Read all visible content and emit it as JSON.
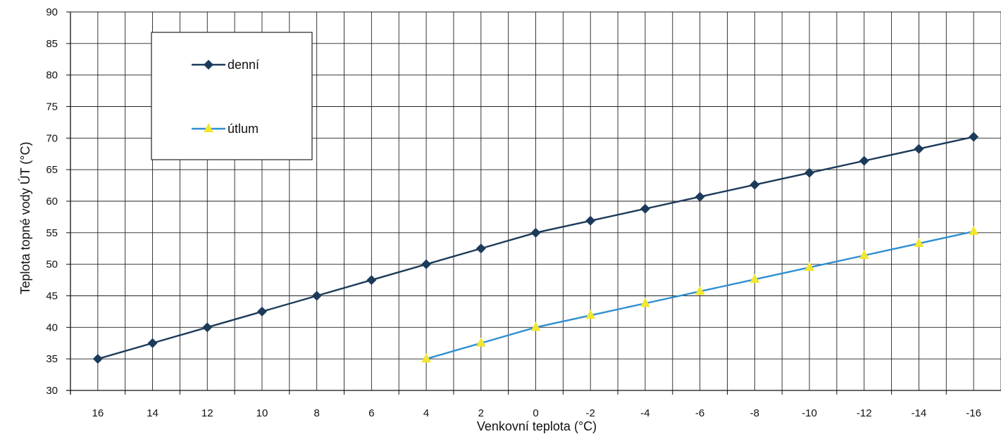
{
  "chart_data": {
    "type": "line",
    "xlabel": "Venkovní teplota (°C)",
    "ylabel": "Teplota topné vody ÚT (°C)",
    "x": [
      16,
      14,
      12,
      10,
      8,
      6,
      4,
      2,
      0,
      -2,
      -4,
      -6,
      -8,
      -10,
      -12,
      -14,
      -16
    ],
    "x_tick_labels": [
      "16",
      "14",
      "12",
      "10",
      "8",
      "6",
      "4",
      "2",
      "0",
      "-2",
      "-4",
      "-6",
      "-8",
      "-10",
      "-12",
      "-14",
      "-16"
    ],
    "x_reversed": true,
    "ylim": [
      30,
      90
    ],
    "y_ticks": [
      30,
      35,
      40,
      45,
      50,
      55,
      60,
      65,
      70,
      75,
      80,
      85,
      90
    ],
    "y_tick_labels": [
      "30",
      "35",
      "40",
      "45",
      "50",
      "55",
      "60",
      "65",
      "70",
      "75",
      "80",
      "85",
      "90"
    ],
    "grid": true,
    "legend_position": "top-left",
    "series": [
      {
        "name": "denní",
        "color": "#1c3a5a",
        "marker": "diamond",
        "x": [
          16,
          14,
          12,
          10,
          8,
          6,
          4,
          2,
          0,
          -2,
          -4,
          -6,
          -8,
          -10,
          -12,
          -14,
          -16
        ],
        "values": [
          35,
          37.5,
          40,
          42.5,
          45,
          47.5,
          50,
          52.5,
          55,
          56.9,
          58.8,
          60.7,
          62.6,
          64.5,
          66.4,
          68.3,
          70.2
        ]
      },
      {
        "name": "útlum",
        "color": "#2f8fd0",
        "marker_color": "#f2e630",
        "marker": "triangle",
        "x": [
          4,
          2,
          0,
          -2,
          -4,
          -6,
          -8,
          -10,
          -12,
          -14,
          -16
        ],
        "values": [
          35,
          37.5,
          40,
          41.9,
          43.8,
          45.7,
          47.6,
          49.5,
          51.4,
          53.3,
          55.2
        ]
      }
    ]
  }
}
